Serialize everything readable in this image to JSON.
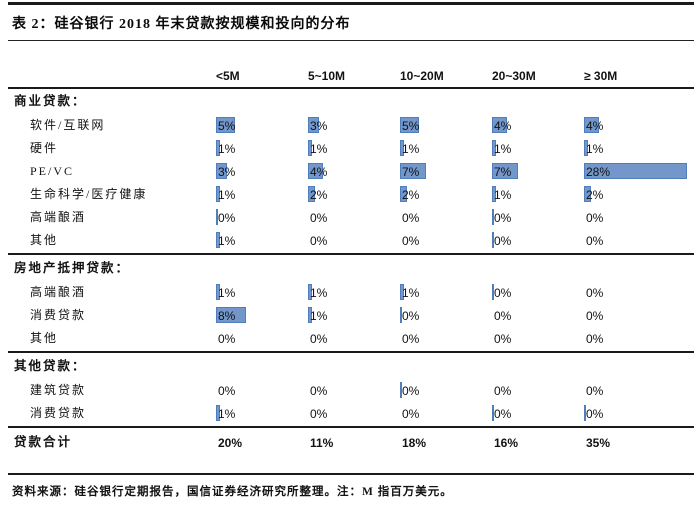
{
  "title": "表 2：硅谷银行 2018 年末贷款按规模和投向的分布",
  "columns": [
    "<5M",
    "5~10M",
    "10~20M",
    "20~30M",
    "≥ 30M"
  ],
  "bar_color": "#7396CB",
  "bar_border_color": "#4E7EBB",
  "rule_color": "#1a1a1a",
  "table": {
    "sections": [
      {
        "name": "商业贷款：",
        "rows": [
          {
            "label": "软件/互联网",
            "cells": [
              {
                "t": "5%",
                "b": 5
              },
              {
                "t": "3%",
                "b": 3
              },
              {
                "t": "5%",
                "b": 5
              },
              {
                "t": "4%",
                "b": 4
              },
              {
                "t": "4%",
                "b": 4
              }
            ]
          },
          {
            "label": "硬件",
            "cells": [
              {
                "t": "1%",
                "b": 1
              },
              {
                "t": "1%",
                "b": 1
              },
              {
                "t": "1%",
                "b": 1
              },
              {
                "t": "1%",
                "b": 1
              },
              {
                "t": "1%",
                "b": 1
              }
            ]
          },
          {
            "label": "PE/VC",
            "cells": [
              {
                "t": "3%",
                "b": 3
              },
              {
                "t": "4%",
                "b": 4
              },
              {
                "t": "7%",
                "b": 7
              },
              {
                "t": "7%",
                "b": 7
              },
              {
                "t": "28%",
                "b": 28
              }
            ]
          },
          {
            "label": "生命科学/医疗健康",
            "cells": [
              {
                "t": "1%",
                "b": 1
              },
              {
                "t": "2%",
                "b": 2
              },
              {
                "t": "2%",
                "b": 2
              },
              {
                "t": "1%",
                "b": 1
              },
              {
                "t": "2%",
                "b": 2
              }
            ]
          },
          {
            "label": "高端酿酒",
            "cells": [
              {
                "t": "0%",
                "b": 0.5
              },
              {
                "t": "0%",
                "b": 0
              },
              {
                "t": "0%",
                "b": 0
              },
              {
                "t": "0%",
                "b": 0.5
              },
              {
                "t": "0%",
                "b": 0
              }
            ]
          },
          {
            "label": "其他",
            "cells": [
              {
                "t": "1%",
                "b": 1
              },
              {
                "t": "0%",
                "b": 0
              },
              {
                "t": "0%",
                "b": 0
              },
              {
                "t": "0%",
                "b": 0.5
              },
              {
                "t": "0%",
                "b": 0
              }
            ]
          }
        ]
      },
      {
        "name": "房地产抵押贷款：",
        "rows": [
          {
            "label": "高端酿酒",
            "cells": [
              {
                "t": "1%",
                "b": 1
              },
              {
                "t": "1%",
                "b": 1
              },
              {
                "t": "1%",
                "b": 1
              },
              {
                "t": "0%",
                "b": 0.5
              },
              {
                "t": "0%",
                "b": 0
              }
            ]
          },
          {
            "label": "消费贷款",
            "cells": [
              {
                "t": "8%",
                "b": 8
              },
              {
                "t": "1%",
                "b": 1
              },
              {
                "t": "0%",
                "b": 0.5
              },
              {
                "t": "0%",
                "b": 0
              },
              {
                "t": "0%",
                "b": 0
              }
            ]
          },
          {
            "label": "其他",
            "cells": [
              {
                "t": "0%",
                "b": 0
              },
              {
                "t": "0%",
                "b": 0
              },
              {
                "t": "0%",
                "b": 0
              },
              {
                "t": "0%",
                "b": 0
              },
              {
                "t": "0%",
                "b": 0
              }
            ]
          }
        ]
      },
      {
        "name": "其他贷款：",
        "rows": [
          {
            "label": "建筑贷款",
            "cells": [
              {
                "t": "0%",
                "b": 0
              },
              {
                "t": "0%",
                "b": 0
              },
              {
                "t": "0%",
                "b": 0.5
              },
              {
                "t": "0%",
                "b": 0
              },
              {
                "t": "0%",
                "b": 0
              }
            ]
          },
          {
            "label": "消费贷款",
            "cells": [
              {
                "t": "1%",
                "b": 1
              },
              {
                "t": "0%",
                "b": 0
              },
              {
                "t": "0%",
                "b": 0
              },
              {
                "t": "0%",
                "b": 0.5
              },
              {
                "t": "0%",
                "b": 0.5
              }
            ]
          }
        ]
      }
    ],
    "total": {
      "label": "贷款合计",
      "cells": [
        "20%",
        "11%",
        "18%",
        "16%",
        "35%"
      ]
    }
  },
  "footer": "资料来源：硅谷银行定期报告，国信证券经济研究所整理。注：M 指百万美元。"
}
